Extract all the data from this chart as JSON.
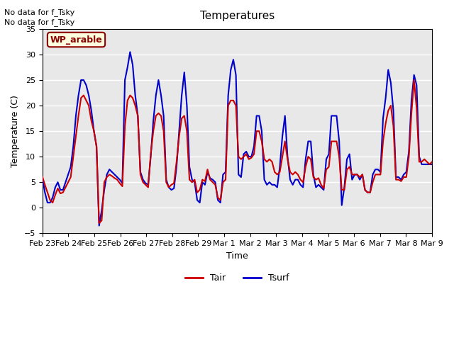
{
  "title": "Temperatures",
  "xlabel": "Time",
  "ylabel": "Temperature (C)",
  "ylim": [
    -5,
    35
  ],
  "bg_color": "#e8e8e8",
  "annotation_line1": "No data for f_Tsky",
  "annotation_line2": "No data for f_Tsky",
  "legend_label": "WP_arable",
  "tair_color": "#cc0000",
  "tsurf_color": "#0000cc",
  "tick_labels": [
    "Feb 23",
    "Feb 24",
    "Feb 25",
    "Feb 26",
    "Feb 27",
    "Feb 28",
    "Feb 29",
    "Mar 1",
    "Mar 2",
    "Mar 3",
    "Mar 4",
    "Mar 5",
    "Mar 6",
    "Mar 7",
    "Mar 8",
    "Mar 9"
  ],
  "tair_values": [
    6.1,
    4.5,
    3.0,
    1.5,
    1.0,
    2.5,
    3.8,
    2.8,
    3.0,
    4.0,
    5.0,
    6.0,
    10.0,
    14.0,
    18.0,
    21.5,
    22.0,
    21.0,
    20.0,
    17.0,
    15.0,
    12.0,
    -3.0,
    -2.5,
    5.0,
    6.0,
    6.5,
    6.2,
    5.8,
    5.5,
    4.8,
    4.2,
    16.0,
    21.0,
    22.0,
    21.5,
    20.0,
    18.0,
    6.5,
    5.0,
    4.5,
    4.0,
    10.5,
    15.0,
    18.0,
    18.5,
    18.0,
    15.0,
    5.0,
    4.0,
    4.5,
    4.8,
    9.0,
    14.0,
    17.5,
    18.0,
    15.0,
    5.5,
    5.0,
    5.5,
    3.0,
    3.5,
    5.5,
    5.2,
    7.5,
    5.5,
    5.0,
    4.5,
    2.0,
    1.5,
    5.0,
    5.5,
    20.0,
    21.0,
    21.0,
    20.0,
    10.0,
    9.5,
    10.0,
    10.5,
    9.5,
    9.8,
    10.5,
    15.0,
    15.0,
    13.0,
    9.5,
    9.0,
    9.5,
    9.0,
    7.0,
    6.5,
    7.0,
    10.0,
    13.0,
    9.5,
    7.0,
    6.5,
    7.0,
    6.5,
    5.5,
    5.0,
    8.0,
    10.0,
    9.5,
    6.0,
    5.5,
    5.8,
    4.5,
    3.8,
    7.5,
    8.0,
    13.0,
    13.0,
    13.0,
    10.0,
    3.5,
    3.5,
    7.5,
    8.0,
    6.5,
    6.5,
    6.5,
    6.0,
    6.5,
    3.5,
    3.0,
    3.0,
    5.0,
    6.5,
    6.5,
    6.5,
    13.0,
    16.5,
    19.0,
    20.0,
    16.0,
    5.5,
    5.5,
    5.2,
    6.0,
    6.0,
    10.0,
    18.5,
    25.0,
    19.5,
    9.0,
    9.0,
    9.5,
    9.0,
    8.5,
    9.0
  ],
  "tsurf_values": [
    6.0,
    3.0,
    1.0,
    1.0,
    2.0,
    4.0,
    5.0,
    3.5,
    3.5,
    5.0,
    6.5,
    8.0,
    12.0,
    18.0,
    22.0,
    25.0,
    25.0,
    24.0,
    22.0,
    19.0,
    15.0,
    12.0,
    -3.5,
    -0.5,
    3.5,
    6.5,
    7.5,
    7.0,
    6.5,
    6.0,
    5.5,
    4.8,
    25.0,
    27.5,
    30.5,
    28.0,
    22.0,
    18.0,
    7.0,
    5.5,
    4.8,
    4.5,
    10.0,
    17.0,
    22.0,
    25.0,
    22.0,
    18.0,
    5.5,
    4.0,
    3.5,
    3.8,
    8.0,
    15.0,
    22.0,
    26.5,
    20.0,
    8.0,
    5.5,
    5.0,
    1.5,
    1.0,
    5.0,
    4.5,
    7.0,
    5.8,
    5.5,
    5.0,
    1.5,
    1.0,
    6.5,
    7.0,
    22.0,
    27.0,
    29.0,
    26.0,
    6.5,
    6.0,
    10.5,
    11.0,
    10.0,
    10.0,
    12.0,
    18.0,
    18.0,
    15.0,
    5.5,
    4.5,
    5.0,
    4.5,
    4.5,
    4.0,
    8.0,
    14.0,
    18.0,
    10.0,
    5.5,
    4.5,
    5.5,
    5.5,
    4.5,
    4.0,
    9.5,
    13.0,
    13.0,
    6.5,
    4.0,
    4.5,
    4.0,
    3.5,
    9.5,
    10.5,
    18.0,
    18.0,
    18.0,
    13.0,
    0.5,
    4.0,
    9.5,
    10.5,
    5.5,
    6.5,
    6.5,
    5.5,
    6.5,
    3.5,
    3.0,
    3.0,
    6.5,
    7.5,
    7.5,
    7.0,
    17.5,
    21.5,
    27.0,
    24.5,
    19.0,
    6.0,
    6.0,
    5.5,
    6.5,
    7.0,
    11.0,
    21.0,
    26.0,
    24.0,
    10.0,
    8.5,
    8.5,
    8.5,
    8.5,
    8.5
  ]
}
